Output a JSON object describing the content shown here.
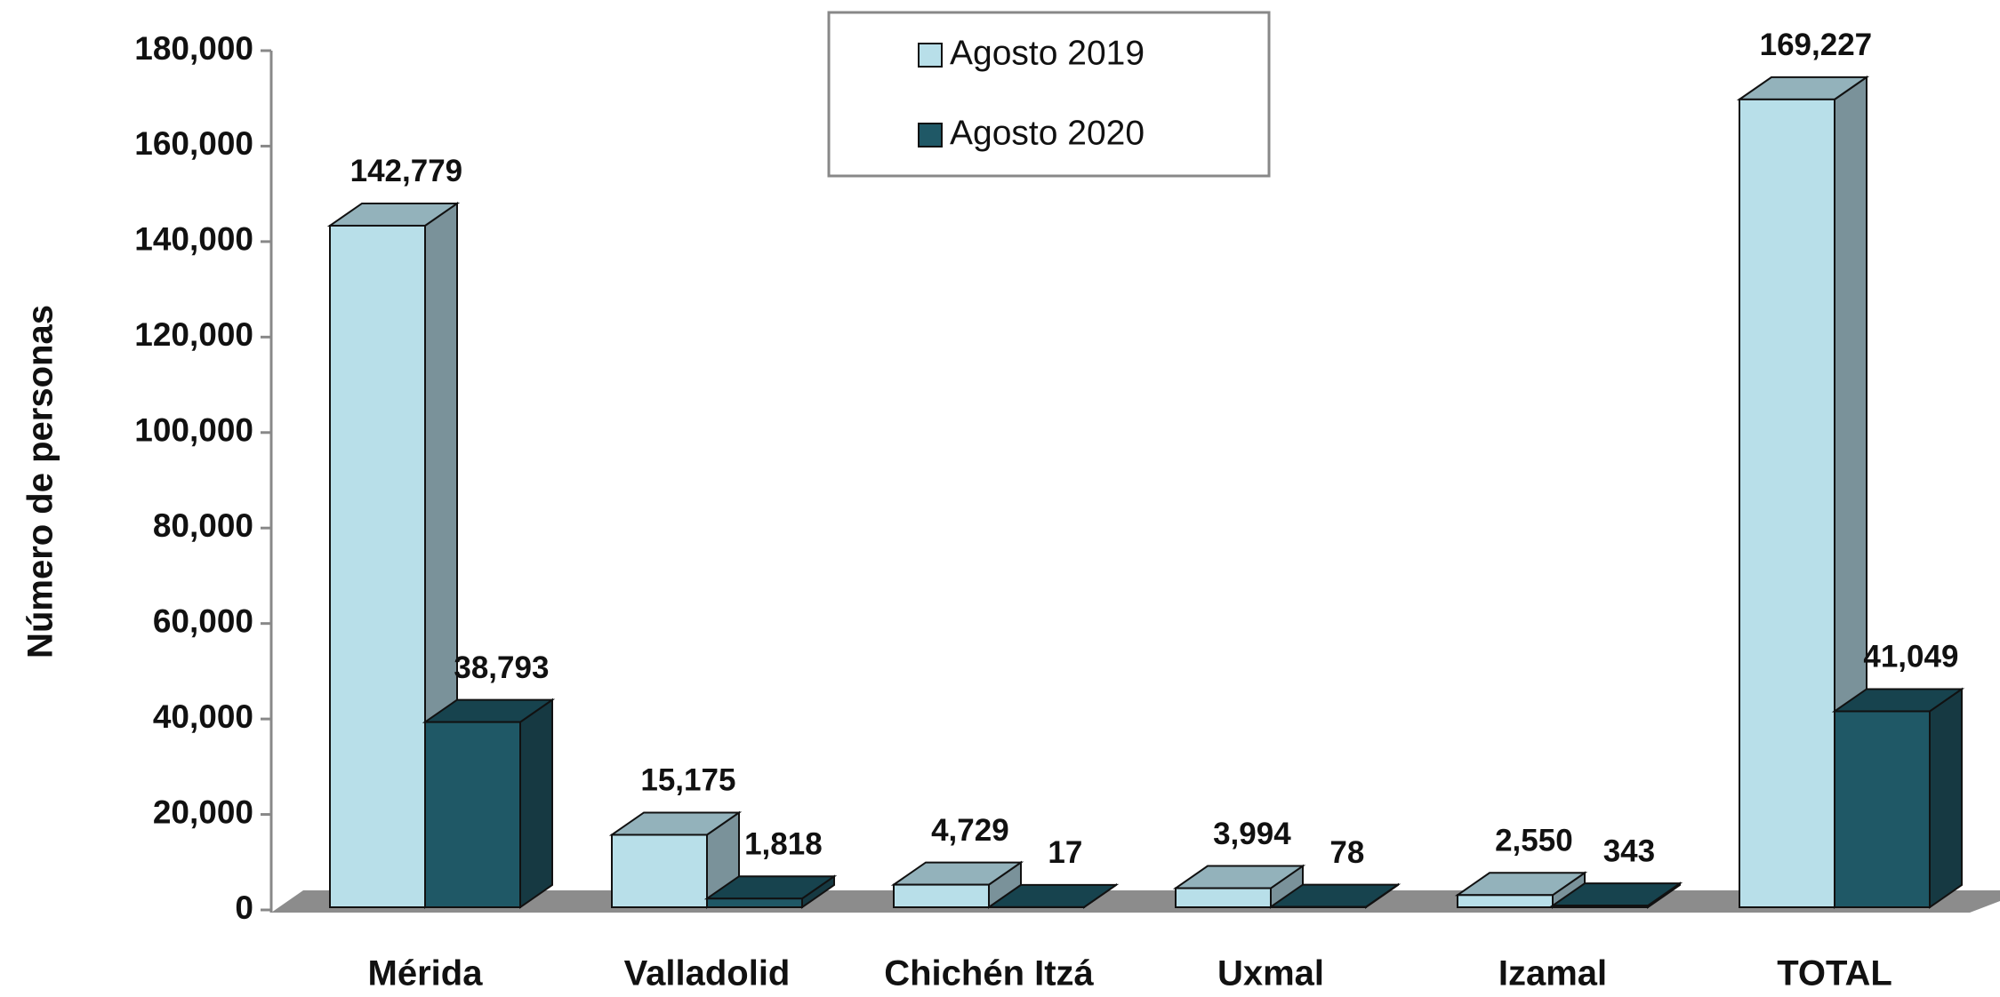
{
  "chart_data": {
    "type": "bar3d",
    "y_axis_label": "Número de personas",
    "categories": [
      "Mérida",
      "Valladolid",
      "Chichén Itzá",
      "Uxmal",
      "Izamal",
      "TOTAL"
    ],
    "series": [
      {
        "name": "Agosto 2019",
        "color": "#b8dfe9",
        "values": [
          142779,
          15175,
          4729,
          3994,
          2550,
          169227
        ],
        "value_labels": [
          "142,779",
          "15,175",
          "4,729",
          "3,994",
          "2,550",
          "169,227"
        ]
      },
      {
        "name": "Agosto 2020",
        "color": "#1f5866",
        "values": [
          38793,
          1818,
          17,
          78,
          343,
          41049
        ],
        "value_labels": [
          "38,793",
          "1,818",
          "17",
          "78",
          "343",
          "41,049"
        ]
      }
    ],
    "ylim": [
      0,
      180000
    ],
    "yticks": [
      0,
      {
        "value": 20000,
        "label": "20,000"
      },
      {
        "value": 40000,
        "label": "40,000"
      },
      {
        "value": 60000,
        "label": "60,000"
      },
      {
        "value": 80000,
        "label": "80,000"
      },
      {
        "value": 100000,
        "label": "100,000"
      },
      {
        "value": 120000,
        "label": "120,000"
      },
      {
        "value": 140000,
        "label": "140,000"
      },
      {
        "value": 160000,
        "label": "160,000"
      },
      {
        "value": 180000,
        "label": "180,000"
      }
    ],
    "legend": "top-center"
  }
}
